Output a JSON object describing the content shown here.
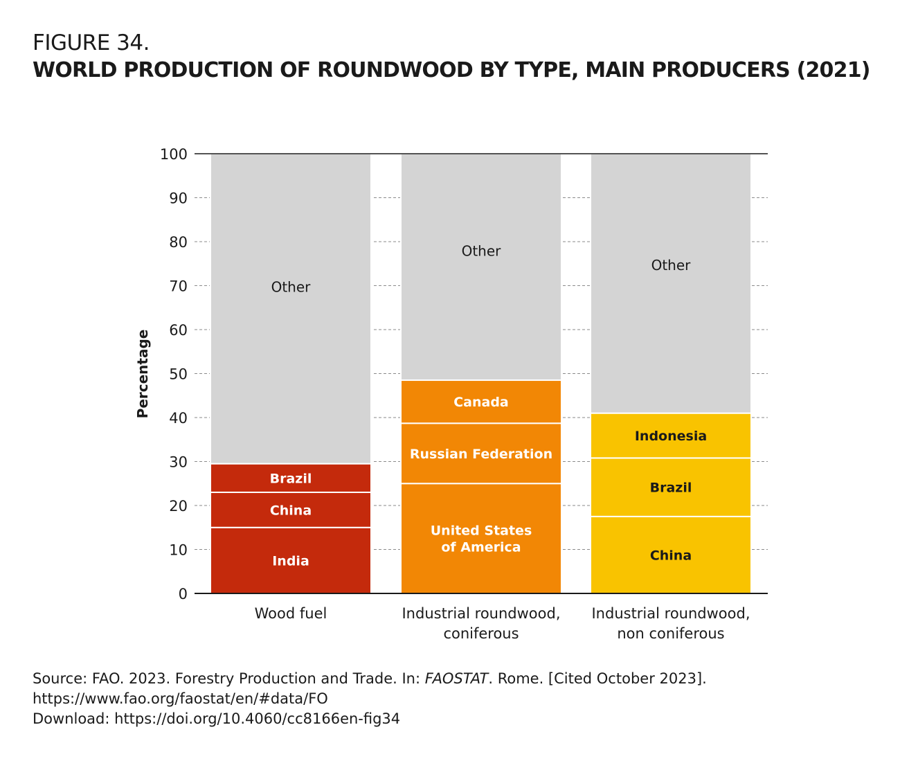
{
  "figure": {
    "number": "FIGURE 34.",
    "title": "WORLD PRODUCTION OF ROUNDWOOD BY TYPE, MAIN PRODUCERS (2021)"
  },
  "chart_data": {
    "type": "bar",
    "stacked": true,
    "title": "WORLD PRODUCTION OF ROUNDWOOD BY TYPE, MAIN PRODUCERS (2021)",
    "xlabel": "",
    "ylabel": "Percentage",
    "ylim": [
      0,
      100
    ],
    "yticks": [
      0,
      10,
      20,
      30,
      40,
      50,
      60,
      70,
      80,
      90,
      100
    ],
    "grid": "dashed horizontal",
    "bars": [
      {
        "category": "Wood fuel",
        "category_lines": [
          "Wood fuel"
        ],
        "color": "#c42a0c",
        "label_color": "#ffffff",
        "segments": [
          {
            "name": "India",
            "lines": [
              "India"
            ],
            "value": 15
          },
          {
            "name": "China",
            "lines": [
              "China"
            ],
            "value": 8
          },
          {
            "name": "Brazil",
            "lines": [
              "Brazil"
            ],
            "value": 6.5
          },
          {
            "name": "Other",
            "lines": [
              "Other"
            ],
            "value": 70.5,
            "other": true
          }
        ]
      },
      {
        "category": "Industrial roundwood, coniferous",
        "category_lines": [
          "Industrial roundwood,",
          "coniferous"
        ],
        "color": "#f28705",
        "label_color": "#ffffff",
        "segments": [
          {
            "name": "United States of America",
            "lines": [
              "United States",
              "of America"
            ],
            "value": 25
          },
          {
            "name": "Russian Federation",
            "lines": [
              "Russian Federation"
            ],
            "value": 13.7
          },
          {
            "name": "Canada",
            "lines": [
              "Canada"
            ],
            "value": 9.8
          },
          {
            "name": "Other",
            "lines": [
              "Other"
            ],
            "value": 51.5,
            "other": true
          }
        ]
      },
      {
        "category": "Industrial roundwood, non coniferous",
        "category_lines": [
          "Industrial roundwood,",
          "non coniferous"
        ],
        "color": "#f9c300",
        "label_color": "#1a1a1a",
        "segments": [
          {
            "name": "China",
            "lines": [
              "China"
            ],
            "value": 17.5
          },
          {
            "name": "Brazil",
            "lines": [
              "Brazil"
            ],
            "value": 13.3
          },
          {
            "name": "Indonesia",
            "lines": [
              "Indonesia"
            ],
            "value": 10.2
          },
          {
            "name": "Other",
            "lines": [
              "Other"
            ],
            "value": 59,
            "other": true
          }
        ]
      }
    ],
    "other_color": "#d4d4d4",
    "other_label_color": "#1a1a1a"
  },
  "source": {
    "line1_prefix": "Source: FAO. 2023. Forestry Production and Trade. In: ",
    "line1_italic": "FAOSTAT",
    "line1_suffix": ". Rome. [Cited October 2023].",
    "line2": "https://www.fao.org/faostat/en/#data/FO",
    "line3": "Download: https://doi.org/10.4060/cc8166en-fig34"
  }
}
